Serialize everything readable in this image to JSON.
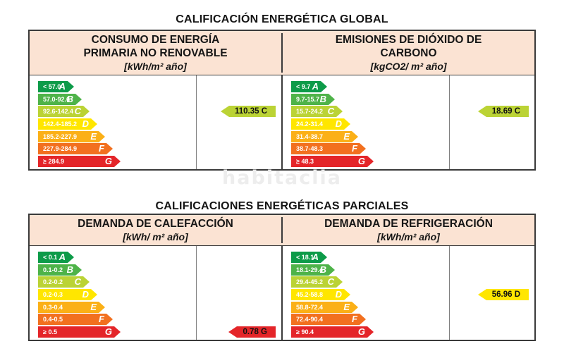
{
  "titles": {
    "global": "CALIFICACIÓN ENERGÉTICA GLOBAL",
    "partial": "CALIFICACIONES ENERGÉTICAS PARCIALES"
  },
  "watermark": {
    "text": "habitaclia",
    "color": "#ededed"
  },
  "grade_colors": {
    "A": "#0D9B49",
    "B": "#4EB349",
    "C": "#BBD335",
    "D": "#FFE600",
    "E": "#FBB017",
    "F": "#F2701F",
    "G": "#E42529"
  },
  "header_bg": "#FBE3D3",
  "panels": {
    "consumo": {
      "header_line1": "CONSUMO DE ENERGÍA",
      "header_line2": "PRIMARIA NO RENOVABLE",
      "unit": "[kWh/m² año]",
      "value_label": "110.35 C",
      "value_grade": "C",
      "scale": [
        {
          "grade": "A",
          "range": "< 57.0"
        },
        {
          "grade": "B",
          "range": "57.0-92.6"
        },
        {
          "grade": "C",
          "range": "92.6-142.4"
        },
        {
          "grade": "D",
          "range": "142.4-185.2"
        },
        {
          "grade": "E",
          "range": "185.2-227.9"
        },
        {
          "grade": "F",
          "range": "227.9-284.9"
        },
        {
          "grade": "G",
          "range": "≥ 284.9"
        }
      ]
    },
    "emisiones": {
      "header_line1": "EMISIONES DE DIÓXIDO DE",
      "header_line2": "CARBONO",
      "unit": "[kgCO2/ m² año]",
      "value_label": "18.69 C",
      "value_grade": "C",
      "scale": [
        {
          "grade": "A",
          "range": "< 9.7"
        },
        {
          "grade": "B",
          "range": "9.7-15.7"
        },
        {
          "grade": "C",
          "range": "15.7-24.2"
        },
        {
          "grade": "D",
          "range": "24.2-31.4"
        },
        {
          "grade": "E",
          "range": "31.4-38.7"
        },
        {
          "grade": "F",
          "range": "38.7-48.3"
        },
        {
          "grade": "G",
          "range": "≥ 48.3"
        }
      ]
    },
    "calefaccion": {
      "header_line1": "DEMANDA DE CALEFACCIÓN",
      "unit": "[kWh/ m² año]",
      "value_label": "0.78 G",
      "value_grade": "G",
      "scale": [
        {
          "grade": "A",
          "range": "< 0.1"
        },
        {
          "grade": "B",
          "range": "0.1-0.2"
        },
        {
          "grade": "C",
          "range": "0.2-0.2"
        },
        {
          "grade": "D",
          "range": "0.2-0.3"
        },
        {
          "grade": "E",
          "range": "0.3-0.4"
        },
        {
          "grade": "F",
          "range": "0.4-0.5"
        },
        {
          "grade": "G",
          "range": "≥ 0.5"
        }
      ]
    },
    "refrigeracion": {
      "header_line1": "DEMANDA DE REFRIGERACIÓN",
      "unit": "[kWh/m² año]",
      "value_label": "56.96 D",
      "value_grade": "D",
      "scale": [
        {
          "grade": "A",
          "range": "< 18.1"
        },
        {
          "grade": "B",
          "range": "18.1-29.4"
        },
        {
          "grade": "C",
          "range": "29.4-45.2"
        },
        {
          "grade": "D",
          "range": "45.2-58.8"
        },
        {
          "grade": "E",
          "range": "58.8-72.4"
        },
        {
          "grade": "F",
          "range": "72.4-90.4"
        },
        {
          "grade": "G",
          "range": "≥ 90.4"
        }
      ]
    }
  },
  "chart_data": [
    {
      "type": "bar",
      "title": "Consumo de energía primaria no renovable",
      "unit": "kWh/m² año",
      "categories": [
        "A",
        "B",
        "C",
        "D",
        "E",
        "F",
        "G"
      ],
      "ranges": [
        "< 57.0",
        "57.0-92.6",
        "92.6-142.4",
        "142.4-185.2",
        "185.2-227.9",
        "227.9-284.9",
        "≥ 284.9"
      ],
      "value": 110.35,
      "rating": "C"
    },
    {
      "type": "bar",
      "title": "Emisiones de dióxido de carbono",
      "unit": "kgCO2/ m² año",
      "categories": [
        "A",
        "B",
        "C",
        "D",
        "E",
        "F",
        "G"
      ],
      "ranges": [
        "< 9.7",
        "9.7-15.7",
        "15.7-24.2",
        "24.2-31.4",
        "31.4-38.7",
        "38.7-48.3",
        "≥ 48.3"
      ],
      "value": 18.69,
      "rating": "C"
    },
    {
      "type": "bar",
      "title": "Demanda de calefacción",
      "unit": "kWh/ m² año",
      "categories": [
        "A",
        "B",
        "C",
        "D",
        "E",
        "F",
        "G"
      ],
      "ranges": [
        "< 0.1",
        "0.1-0.2",
        "0.2-0.2",
        "0.2-0.3",
        "0.3-0.4",
        "0.4-0.5",
        "≥ 0.5"
      ],
      "value": 0.78,
      "rating": "G"
    },
    {
      "type": "bar",
      "title": "Demanda de refrigeración",
      "unit": "kWh/m² año",
      "categories": [
        "A",
        "B",
        "C",
        "D",
        "E",
        "F",
        "G"
      ],
      "ranges": [
        "< 18.1",
        "18.1-29.4",
        "29.4-45.2",
        "45.2-58.8",
        "58.8-72.4",
        "72.4-90.4",
        "≥ 90.4"
      ],
      "value": 56.96,
      "rating": "D"
    }
  ]
}
